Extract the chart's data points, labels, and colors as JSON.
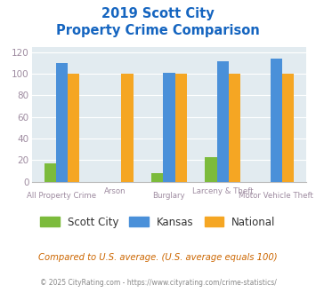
{
  "title_line1": "2019 Scott City",
  "title_line2": "Property Crime Comparison",
  "categories": [
    "All Property Crime",
    "Arson",
    "Burglary",
    "Larceny & Theft",
    "Motor Vehicle Theft"
  ],
  "scott_city": [
    17,
    0,
    8,
    23,
    0
  ],
  "kansas": [
    110,
    0,
    101,
    112,
    114
  ],
  "national": [
    100,
    100,
    100,
    100,
    100
  ],
  "scott_city_color": "#7CBB3C",
  "kansas_color": "#4A90D9",
  "national_color": "#F5A623",
  "title_color": "#1565C0",
  "bg_color": "#E2EBF0",
  "xlabel_color": "#9E8BA0",
  "tick_color": "#9E8BA0",
  "ylim": [
    0,
    125
  ],
  "yticks": [
    0,
    20,
    40,
    60,
    80,
    100,
    120
  ],
  "footnote1": "Compared to U.S. average. (U.S. average equals 100)",
  "footnote2": "© 2025 CityRating.com - https://www.cityrating.com/crime-statistics/",
  "footnote1_color": "#CC6600",
  "footnote2_color": "#888888",
  "bar_width": 0.22,
  "group_positions": [
    0,
    1,
    2,
    3,
    4
  ]
}
